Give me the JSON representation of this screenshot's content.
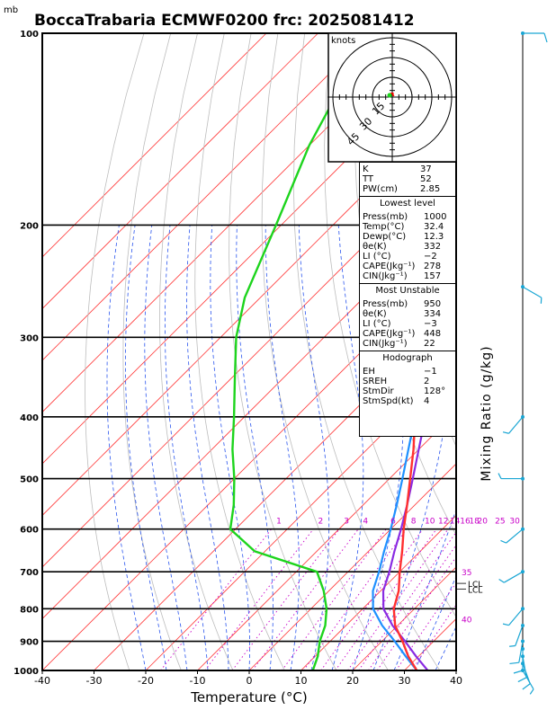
{
  "header": {
    "unit_mb": "mb",
    "title": "BoccaTrabaria ECMWF0200 frc: 2025081412"
  },
  "chart_data": {
    "type": "skew-t",
    "title": "BoccaTrabaria ECMWF0200 frc: 2025081412",
    "xlabel": "Temperature (°C)",
    "ylabel_right": "Mixing Ratio (g/kg)",
    "xlim": [
      -40,
      40
    ],
    "ylim_mb": [
      1000,
      100
    ],
    "x_ticks": [
      "-40",
      "-30",
      "-20",
      "-10",
      "0",
      "10",
      "20",
      "30",
      "40"
    ],
    "pressure_ticks": [
      {
        "p": 1000,
        "label": "1000"
      },
      {
        "p": 900,
        "label": "900"
      },
      {
        "p": 800,
        "label": "800"
      },
      {
        "p": 700,
        "label": "700"
      },
      {
        "p": 600,
        "label": "600"
      },
      {
        "p": 500,
        "label": "500"
      },
      {
        "p": 400,
        "label": "400"
      },
      {
        "p": 300,
        "label": "300"
      },
      {
        "p": 200,
        "label": "200"
      },
      {
        "p": 100,
        "label": "100"
      }
    ],
    "mixing_ratio_labels": [
      "1",
      "2",
      "3",
      "4",
      "6",
      "8",
      "10",
      "12",
      "14",
      "16",
      "18",
      "20",
      "25",
      "30"
    ],
    "mixing_ratio_label_p": 580,
    "side_labels": [
      {
        "p": 700,
        "label": "35"
      },
      {
        "p": 830,
        "label": "40"
      },
      {
        "p": 730,
        "label": "LCL"
      },
      {
        "p": 745,
        "label": "LCL"
      }
    ],
    "temperature_profile": [
      {
        "p": 1000,
        "t": 32.4
      },
      {
        "p": 950,
        "t": 28
      },
      {
        "p": 900,
        "t": 24
      },
      {
        "p": 850,
        "t": 19.5
      },
      {
        "p": 800,
        "t": 16
      },
      {
        "p": 750,
        "t": 13.5
      },
      {
        "p": 700,
        "t": 10
      },
      {
        "p": 650,
        "t": 6.5
      },
      {
        "p": 600,
        "t": 2.5
      },
      {
        "p": 550,
        "t": -1.5
      },
      {
        "p": 500,
        "t": -6
      },
      {
        "p": 450,
        "t": -11
      },
      {
        "p": 400,
        "t": -17
      },
      {
        "p": 350,
        "t": -24
      },
      {
        "p": 300,
        "t": -32
      },
      {
        "p": 250,
        "t": -43
      },
      {
        "p": 240,
        "t": -46
      },
      {
        "p": 200,
        "t": -53
      },
      {
        "p": 150,
        "t": -59
      },
      {
        "p": 100,
        "t": -65
      }
    ],
    "dewpoint_profile": [
      {
        "p": 1000,
        "t": 12.3
      },
      {
        "p": 950,
        "t": 10.5
      },
      {
        "p": 900,
        "t": 8
      },
      {
        "p": 850,
        "t": 6
      },
      {
        "p": 800,
        "t": 3
      },
      {
        "p": 750,
        "t": -1
      },
      {
        "p": 700,
        "t": -6
      },
      {
        "p": 650,
        "t": -22
      },
      {
        "p": 600,
        "t": -31
      },
      {
        "p": 550,
        "t": -35
      },
      {
        "p": 500,
        "t": -40
      },
      {
        "p": 450,
        "t": -46
      },
      {
        "p": 400,
        "t": -52
      },
      {
        "p": 350,
        "t": -59
      },
      {
        "p": 300,
        "t": -67
      },
      {
        "p": 260,
        "t": -73
      },
      {
        "p": 200,
        "t": -81
      },
      {
        "p": 150,
        "t": -90
      },
      {
        "p": 100,
        "t": -100
      }
    ],
    "parcel_profile": [
      {
        "p": 1000,
        "t": 32.4
      },
      {
        "p": 950,
        "t": 27.5
      },
      {
        "p": 900,
        "t": 22.5
      },
      {
        "p": 850,
        "t": 17
      },
      {
        "p": 800,
        "t": 12
      },
      {
        "p": 750,
        "t": 8.5
      },
      {
        "p": 700,
        "t": 6
      },
      {
        "p": 650,
        "t": 3
      },
      {
        "p": 600,
        "t": 0
      },
      {
        "p": 550,
        "t": -3.5
      },
      {
        "p": 500,
        "t": -7.5
      },
      {
        "p": 450,
        "t": -12
      },
      {
        "p": 400,
        "t": -17
      },
      {
        "p": 350,
        "t": -23
      },
      {
        "p": 300,
        "t": -30
      },
      {
        "p": 250,
        "t": -38.5
      },
      {
        "p": 200,
        "t": -48
      },
      {
        "p": 150,
        "t": -62
      },
      {
        "p": 120,
        "t": -74
      }
    ],
    "virtual_parcel_profile": [
      {
        "p": 1000,
        "t": 34.5
      },
      {
        "p": 950,
        "t": 29.5
      },
      {
        "p": 900,
        "t": 24.5
      },
      {
        "p": 850,
        "t": 19
      },
      {
        "p": 800,
        "t": 14
      },
      {
        "p": 750,
        "t": 10.5
      },
      {
        "p": 700,
        "t": 8
      },
      {
        "p": 650,
        "t": 5
      },
      {
        "p": 600,
        "t": 2
      },
      {
        "p": 550,
        "t": -1.5
      },
      {
        "p": 500,
        "t": -5.5
      },
      {
        "p": 450,
        "t": -10
      },
      {
        "p": 400,
        "t": -15
      },
      {
        "p": 350,
        "t": -21
      },
      {
        "p": 300,
        "t": -28
      },
      {
        "p": 250,
        "t": -36.5
      },
      {
        "p": 200,
        "t": -46
      },
      {
        "p": 150,
        "t": -60
      },
      {
        "p": 120,
        "t": -72
      }
    ],
    "wind_barbs": [
      {
        "p": 1000,
        "dir": 150,
        "spd": 5
      },
      {
        "p": 975,
        "dir": 160,
        "spd": 10
      },
      {
        "p": 950,
        "dir": 170,
        "spd": 10
      },
      {
        "p": 925,
        "dir": 180,
        "spd": 10
      },
      {
        "p": 900,
        "dir": 190,
        "spd": 10
      },
      {
        "p": 850,
        "dir": 200,
        "spd": 5
      },
      {
        "p": 800,
        "dir": 220,
        "spd": 5
      },
      {
        "p": 700,
        "dir": 240,
        "spd": 5
      },
      {
        "p": 600,
        "dir": 230,
        "spd": 5
      },
      {
        "p": 500,
        "dir": 270,
        "spd": 5
      },
      {
        "p": 400,
        "dir": 220,
        "spd": 5
      },
      {
        "p": 250,
        "dir": 120,
        "spd": 5
      },
      {
        "p": 100,
        "dir": 90,
        "spd": 10
      }
    ],
    "colors": {
      "isotherm": "#ff3b3b",
      "isobar": "#000000",
      "dry_adiabat": "#bdbdbd",
      "moist_adiabat": "#2a55ee",
      "mixing_ratio": "#c800c8",
      "temperature": "#ff3030",
      "dewpoint": "#1dd41d",
      "parcel": "#1e90ff",
      "virtual_parcel": "#8a2be2",
      "barb": "#1aa6d4",
      "hodograph_trace": "#ff0000"
    },
    "hodograph": {
      "label": "knots",
      "ring_labels": [
        "15",
        "30",
        "45"
      ],
      "ring_max_knots": 45
    }
  },
  "info_table": {
    "indices": [
      {
        "label": "K",
        "value": "37"
      },
      {
        "label": "TT",
        "value": "52"
      },
      {
        "label": "PW(cm)",
        "value": "2.85"
      }
    ],
    "lowest_level": {
      "title": "Lowest level",
      "rows": [
        {
          "label": "Press(mb)",
          "value": "1000"
        },
        {
          "label": "Temp(°C)",
          "value": "32.4"
        },
        {
          "label": "Dewp(°C)",
          "value": "12.3"
        },
        {
          "label": "θe(K)",
          "value": "332"
        },
        {
          "label": "LI (°C)",
          "value": "−2"
        },
        {
          "label": "CAPE(Jkg⁻¹)",
          "value": "278"
        },
        {
          "label": "CIN(Jkg⁻¹)",
          "value": "157"
        }
      ]
    },
    "most_unstable": {
      "title": "Most Unstable",
      "rows": [
        {
          "label": "Press(mb)",
          "value": "950"
        },
        {
          "label": "θe(K)",
          "value": "334"
        },
        {
          "label": "LI (°C)",
          "value": "−3"
        },
        {
          "label": "CAPE(Jkg⁻¹)",
          "value": "448"
        },
        {
          "label": "CIN(Jkg⁻¹)",
          "value": "22"
        }
      ]
    },
    "hodograph_stats": {
      "title": "Hodograph",
      "rows": [
        {
          "label": "EH",
          "value": "−1"
        },
        {
          "label": "SREH",
          "value": "2"
        },
        {
          "label": "StmDir",
          "value": "128°"
        },
        {
          "label": "StmSpd(kt)",
          "value": "4"
        }
      ]
    }
  }
}
